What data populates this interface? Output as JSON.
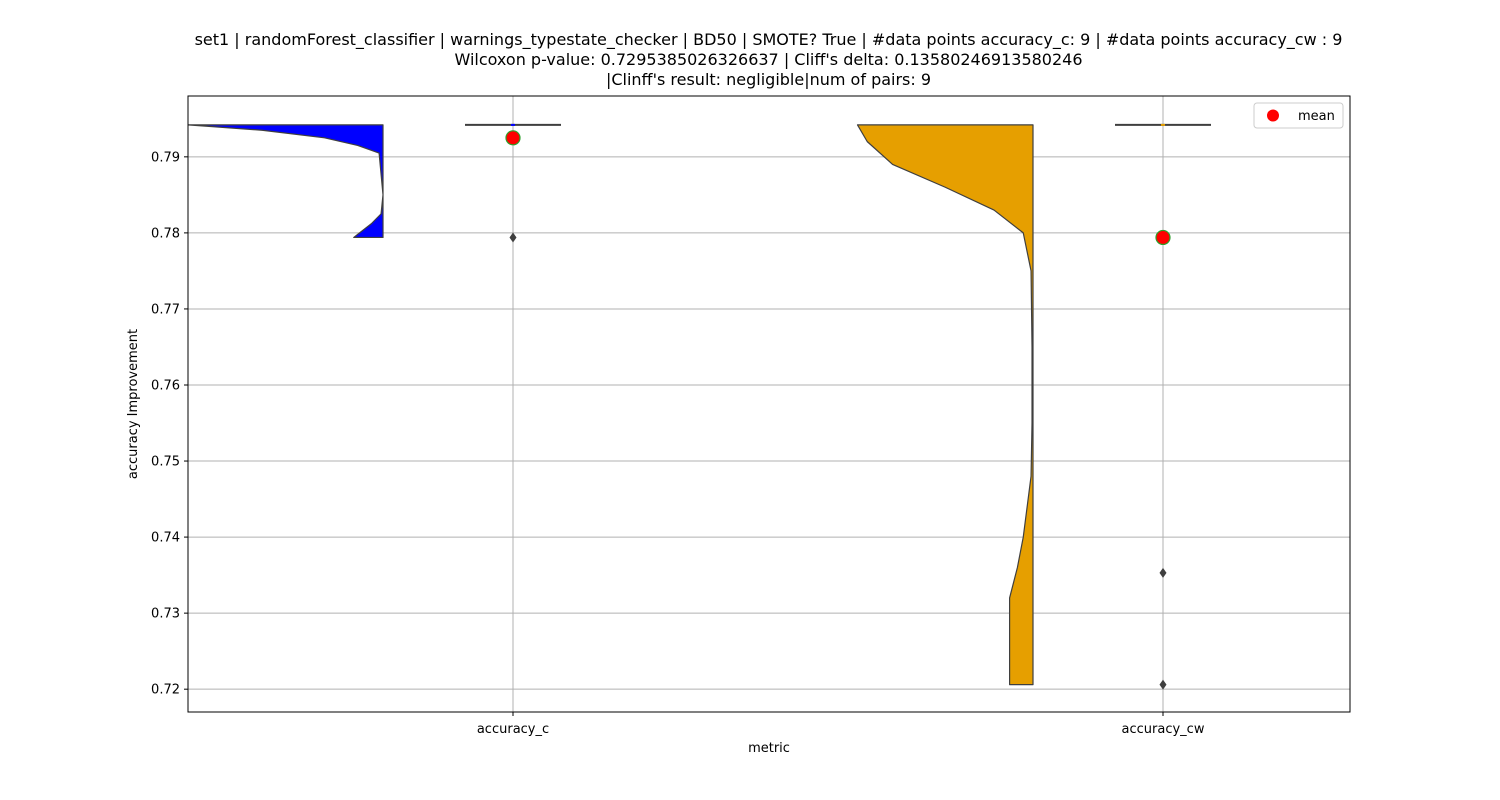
{
  "chart_data": {
    "type": "violin",
    "title": [
      "set1 | randomForest_classifier | warnings_typestate_checker | BD50 | SMOTE? True | #data points accuracy_c: 9 | #data points accuracy_cw : 9",
      "Wilcoxon p-value: 0.7295385026326637 | Cliff's delta: 0.13580246913580246",
      "|Clinff's result: negligible|num of pairs: 9"
    ],
    "xlabel": "metric",
    "ylabel": "accuracy Improvement",
    "ylim": [
      0.717,
      0.798
    ],
    "yticks": [
      "0.72",
      "0.73",
      "0.74",
      "0.75",
      "0.76",
      "0.77",
      "0.78",
      "0.79"
    ],
    "categories": [
      "accuracy_c",
      "accuracy_cw"
    ],
    "grid": true,
    "legend": {
      "placement": "top-right",
      "entries": [
        "mean"
      ]
    },
    "series": [
      {
        "name": "accuracy_c",
        "color": "#0000ff",
        "range": [
          0.7794,
          0.7942
        ],
        "median": 0.7942,
        "mean": 0.7925,
        "outliers": [
          0.7794
        ],
        "density": [
          {
            "y": 0.7942,
            "w": 1.0
          },
          {
            "y": 0.7935,
            "w": 0.62
          },
          {
            "y": 0.7925,
            "w": 0.3
          },
          {
            "y": 0.7915,
            "w": 0.13
          },
          {
            "y": 0.7905,
            "w": 0.02
          },
          {
            "y": 0.785,
            "w": 0.0
          },
          {
            "y": 0.7825,
            "w": 0.01
          },
          {
            "y": 0.7812,
            "w": 0.06
          },
          {
            "y": 0.78,
            "w": 0.12
          },
          {
            "y": 0.7794,
            "w": 0.15
          }
        ]
      },
      {
        "name": "accuracy_cw",
        "color": "#e69f00",
        "range": [
          0.7206,
          0.7942
        ],
        "median": 0.7942,
        "mean": 0.7794,
        "outliers": [
          0.7353,
          0.7206
        ],
        "density": [
          {
            "y": 0.7942,
            "w": 0.9
          },
          {
            "y": 0.792,
            "w": 0.85
          },
          {
            "y": 0.789,
            "w": 0.72
          },
          {
            "y": 0.786,
            "w": 0.45
          },
          {
            "y": 0.783,
            "w": 0.2
          },
          {
            "y": 0.78,
            "w": 0.05
          },
          {
            "y": 0.775,
            "w": 0.01
          },
          {
            "y": 0.765,
            "w": 0.005
          },
          {
            "y": 0.755,
            "w": 0.005
          },
          {
            "y": 0.748,
            "w": 0.01
          },
          {
            "y": 0.744,
            "w": 0.03
          },
          {
            "y": 0.74,
            "w": 0.05
          },
          {
            "y": 0.736,
            "w": 0.08
          },
          {
            "y": 0.732,
            "w": 0.12
          },
          {
            "y": 0.726,
            "w": 0.12
          },
          {
            "y": 0.7206,
            "w": 0.12
          }
        ]
      }
    ]
  }
}
